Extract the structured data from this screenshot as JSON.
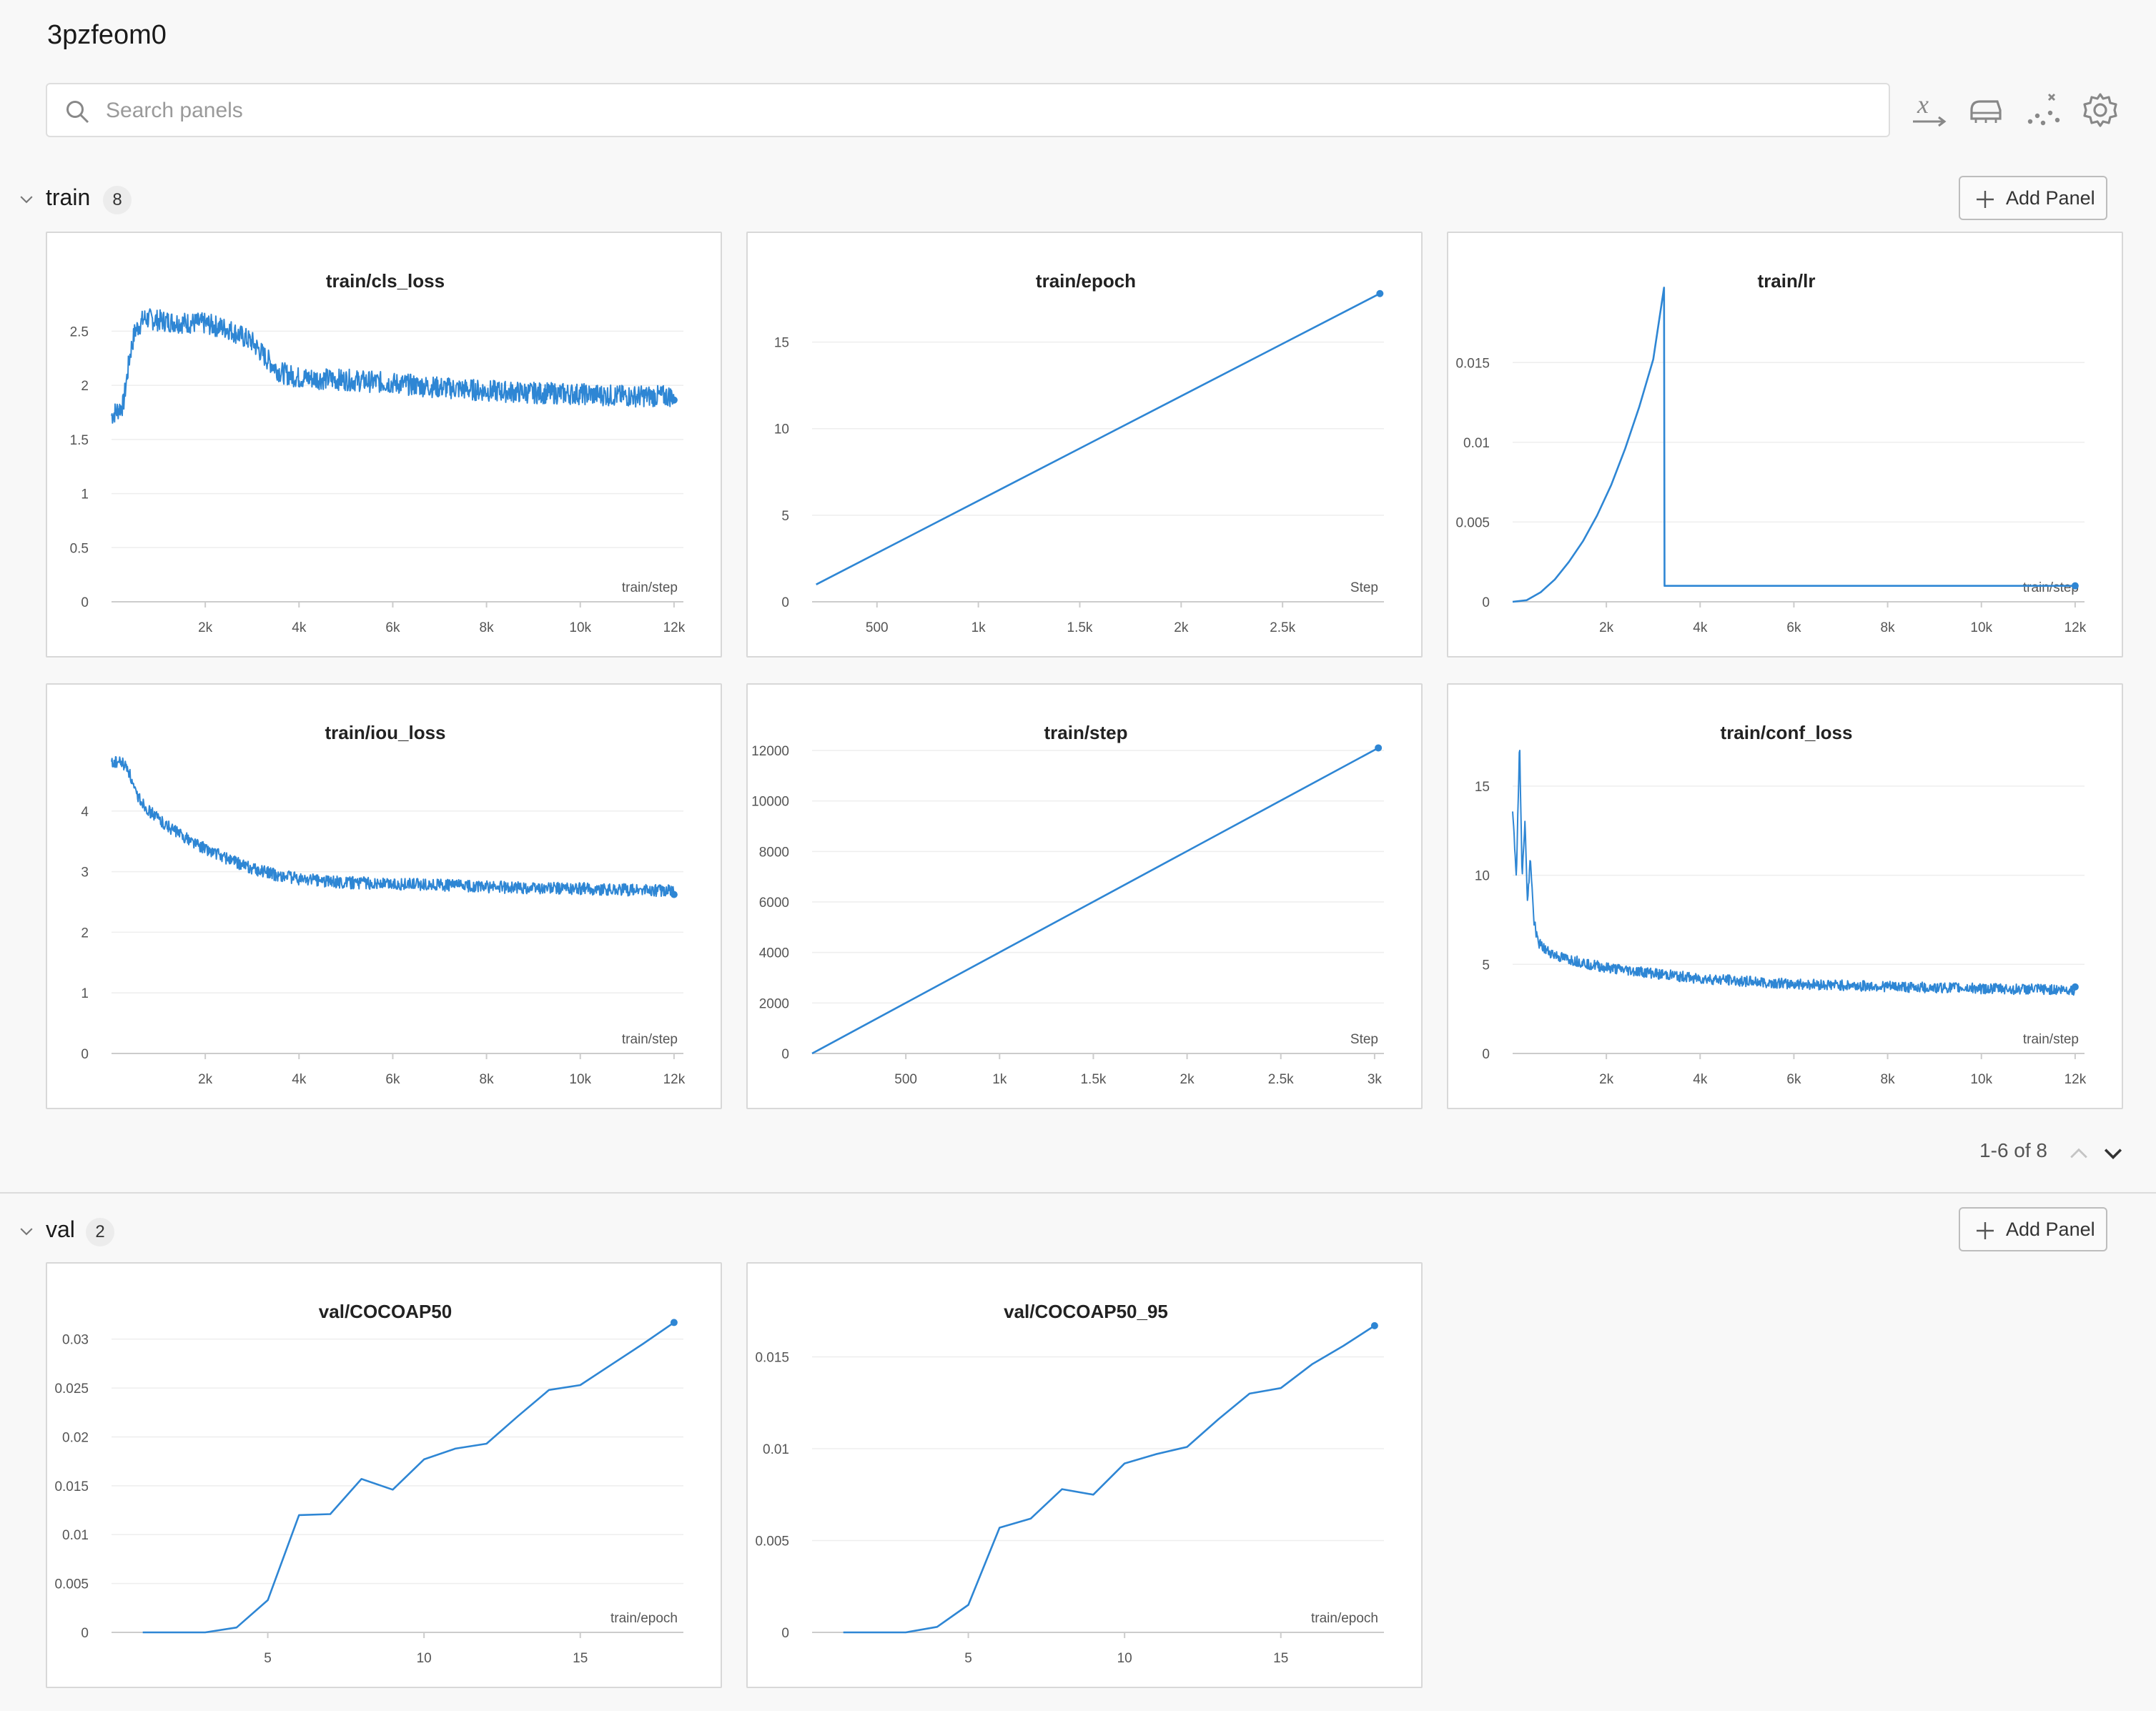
{
  "run": {
    "title": "3pzfeom0"
  },
  "search": {
    "placeholder": "Search panels",
    "icon": "search-icon"
  },
  "toolbar": [
    {
      "name": "x-axis-icon"
    },
    {
      "name": "smoothing-icon"
    },
    {
      "name": "outlier-icon"
    },
    {
      "name": "gear-icon"
    }
  ],
  "colors": {
    "series": "#2e86d4",
    "grid": "#eeeeee",
    "axis": "#cccccc",
    "tick": "#555555"
  },
  "sections": {
    "train": {
      "name": "train",
      "count": "8",
      "add_label": "Add Panel"
    },
    "val": {
      "name": "val",
      "count": "2",
      "add_label": "Add Panel"
    }
  },
  "pagination": {
    "label": "1-6 of 8"
  },
  "chart_data": [
    {
      "id": "cls_loss",
      "type": "line",
      "title": "train/cls_loss",
      "xlabel": "train/step",
      "ylabel": "",
      "xlim": [
        0,
        12200
      ],
      "ylim": [
        0,
        2.8
      ],
      "xticks": [
        2000,
        4000,
        6000,
        8000,
        10000,
        12000
      ],
      "xticklabels": [
        "2k",
        "4k",
        "6k",
        "8k",
        "10k",
        "12k"
      ],
      "yticks": [
        0,
        0.5,
        1,
        1.5,
        2,
        2.5
      ],
      "yticklabels": [
        "0",
        "0.5",
        "1",
        "1.5",
        "2",
        "2.5"
      ],
      "noisy": true,
      "x": [
        0,
        250,
        400,
        500,
        700,
        1000,
        1500,
        2000,
        2500,
        3000,
        3300,
        3600,
        4000,
        5000,
        6000,
        7000,
        8000,
        9000,
        10000,
        11000,
        12000
      ],
      "y": [
        1.72,
        1.82,
        2.3,
        2.5,
        2.62,
        2.6,
        2.58,
        2.57,
        2.52,
        2.4,
        2.25,
        2.12,
        2.07,
        2.05,
        2.02,
        1.98,
        1.95,
        1.93,
        1.92,
        1.9,
        1.9
      ],
      "noise": 0.1
    },
    {
      "id": "epoch",
      "type": "line",
      "title": "train/epoch",
      "xlabel": "Step",
      "ylabel": "",
      "xlim": [
        180,
        3000
      ],
      "ylim": [
        0,
        17.5
      ],
      "xticks": [
        500,
        1000,
        1500,
        2000,
        2500
      ],
      "xticklabels": [
        "500",
        "1k",
        "1.5k",
        "2k",
        "2.5k"
      ],
      "yticks": [
        0,
        5,
        10,
        15
      ],
      "yticklabels": [
        "0",
        "5",
        "10",
        "15"
      ],
      "x": [
        200,
        2980
      ],
      "y": [
        1,
        17.8
      ]
    },
    {
      "id": "lr",
      "type": "line",
      "title": "train/lr",
      "xlabel": "train/step",
      "ylabel": "",
      "xlim": [
        0,
        12200
      ],
      "ylim": [
        0,
        0.019
      ],
      "xticks": [
        2000,
        4000,
        6000,
        8000,
        10000,
        12000
      ],
      "xticklabels": [
        "2k",
        "4k",
        "6k",
        "8k",
        "10k",
        "12k"
      ],
      "yticks": [
        0,
        0.005,
        0.01,
        0.015
      ],
      "yticklabels": [
        "0",
        "0.005",
        "0.01",
        "0.015"
      ],
      "x": [
        0,
        300,
        600,
        900,
        1200,
        1500,
        1800,
        2100,
        2400,
        2700,
        3000,
        3230,
        3240,
        6000,
        9000,
        12000
      ],
      "y": [
        0,
        0.0001,
        0.0006,
        0.0014,
        0.0025,
        0.0038,
        0.0054,
        0.0073,
        0.0096,
        0.0122,
        0.0152,
        0.0197,
        0.001,
        0.001,
        0.001,
        0.001
      ]
    },
    {
      "id": "iou_loss",
      "type": "line",
      "title": "train/iou_loss",
      "xlabel": "train/step",
      "ylabel": "",
      "xlim": [
        0,
        12200
      ],
      "ylim": [
        0,
        5
      ],
      "xticks": [
        2000,
        4000,
        6000,
        8000,
        10000,
        12000
      ],
      "xticklabels": [
        "2k",
        "4k",
        "6k",
        "8k",
        "10k",
        "12k"
      ],
      "yticks": [
        0,
        1,
        2,
        3,
        4
      ],
      "yticklabels": [
        "0",
        "1",
        "2",
        "3",
        "4"
      ],
      "noisy": true,
      "x": [
        0,
        200,
        350,
        500,
        800,
        1200,
        1600,
        2000,
        2500,
        3000,
        3500,
        4000,
        5000,
        6000,
        7000,
        8000,
        9000,
        10000,
        11000,
        12000
      ],
      "y": [
        4.8,
        4.8,
        4.7,
        4.3,
        4.0,
        3.75,
        3.55,
        3.38,
        3.2,
        3.05,
        2.95,
        2.88,
        2.82,
        2.8,
        2.78,
        2.75,
        2.73,
        2.72,
        2.7,
        2.68
      ],
      "noise": 0.1
    },
    {
      "id": "step",
      "type": "line",
      "title": "train/step",
      "xlabel": "Step",
      "ylabel": "",
      "xlim": [
        0,
        3050
      ],
      "ylim": [
        0,
        12000
      ],
      "xticks": [
        500,
        1000,
        1500,
        2000,
        2500,
        3000
      ],
      "xticklabels": [
        "500",
        "1k",
        "1.5k",
        "2k",
        "2.5k",
        "3k"
      ],
      "yticks": [
        0,
        2000,
        4000,
        6000,
        8000,
        10000,
        12000
      ],
      "yticklabels": [
        "0",
        "2000",
        "4000",
        "6000",
        "8000",
        "10000",
        "12000"
      ],
      "x": [
        0,
        3020
      ],
      "y": [
        0,
        12100
      ]
    },
    {
      "id": "conf_loss",
      "type": "line",
      "title": "train/conf_loss",
      "xlabel": "train/step",
      "ylabel": "",
      "xlim": [
        0,
        12200
      ],
      "ylim": [
        0,
        17
      ],
      "xticks": [
        2000,
        4000,
        6000,
        8000,
        10000,
        12000
      ],
      "xticklabels": [
        "2k",
        "4k",
        "6k",
        "8k",
        "10k",
        "12k"
      ],
      "yticks": [
        0,
        5,
        10,
        15
      ],
      "yticklabels": [
        "0",
        "5",
        "10",
        "15"
      ],
      "noisy": true,
      "x": [
        0,
        80,
        150,
        200,
        260,
        320,
        380,
        450,
        550,
        700,
        1000,
        1500,
        2000,
        3000,
        4000,
        6000,
        8000,
        10000,
        12000
      ],
      "y": [
        13.5,
        10,
        17.5,
        10,
        13,
        8.5,
        11,
        7.5,
        6.2,
        5.8,
        5.4,
        5.1,
        4.8,
        4.5,
        4.2,
        3.9,
        3.75,
        3.65,
        3.55
      ],
      "noise": 0.3
    },
    {
      "id": "cocoap50",
      "type": "line",
      "title": "val/COCOAP50",
      "xlabel": "train/epoch",
      "ylabel": "",
      "xlim": [
        0,
        18.3
      ],
      "ylim": [
        0,
        0.031
      ],
      "xticks": [
        5,
        10,
        15
      ],
      "xticklabels": [
        "5",
        "10",
        "15"
      ],
      "yticks": [
        0,
        0.005,
        0.01,
        0.015,
        0.02,
        0.025,
        0.03
      ],
      "yticklabels": [
        "0",
        "0.005",
        "0.01",
        "0.015",
        "0.02",
        "0.025",
        "0.03"
      ],
      "x": [
        1,
        2,
        3,
        4,
        5,
        6,
        7,
        8,
        9,
        10,
        11,
        12,
        13,
        14,
        15,
        16,
        17,
        18
      ],
      "y": [
        0,
        0,
        0,
        0.0005,
        0.0033,
        0.012,
        0.0121,
        0.0157,
        0.0146,
        0.0177,
        0.0188,
        0.0193,
        0.0221,
        0.0248,
        0.0253,
        0.0274,
        0.0295,
        0.0317
      ]
    },
    {
      "id": "cocoap50_95",
      "type": "line",
      "title": "val/COCOAP50_95",
      "xlabel": "train/epoch",
      "ylabel": "",
      "xlim": [
        0,
        18.3
      ],
      "ylim": [
        0,
        0.0165
      ],
      "xticks": [
        5,
        10,
        15
      ],
      "xticklabels": [
        "5",
        "10",
        "15"
      ],
      "yticks": [
        0,
        0.005,
        0.01,
        0.015
      ],
      "yticklabels": [
        "0",
        "0.005",
        "0.01",
        "0.015"
      ],
      "x": [
        1,
        2,
        3,
        4,
        5,
        6,
        7,
        8,
        9,
        10,
        11,
        12,
        13,
        14,
        15,
        16,
        17,
        18
      ],
      "y": [
        0,
        0,
        0,
        0.0003,
        0.0015,
        0.0057,
        0.0062,
        0.0078,
        0.0075,
        0.0092,
        0.0097,
        0.0101,
        0.0116,
        0.013,
        0.0133,
        0.0146,
        0.0156,
        0.0167
      ]
    }
  ]
}
